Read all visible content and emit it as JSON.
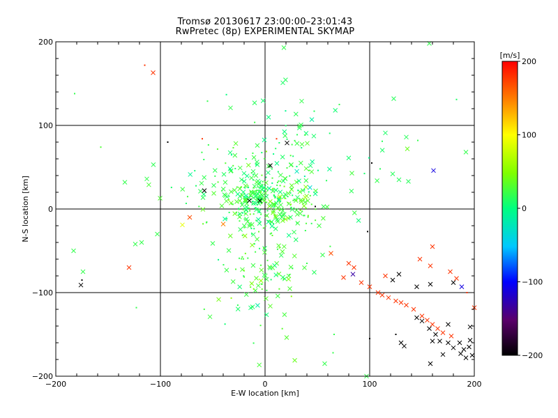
{
  "title_line1": "Tromsø 20130617 23:00:00–23:01:43",
  "title_line2": "RwPretec (8p) EXPERIMENTAL SKYMAP",
  "chart_data": {
    "type": "scatter",
    "title": "Tromsø 20130617 23:00:00–23:01:43 / RwPretec (8p) EXPERIMENTAL SKYMAP",
    "xlabel": "E-W location [km]",
    "ylabel": "N-S location [km]",
    "xlim": [
      -200,
      200
    ],
    "ylim": [
      -200,
      200
    ],
    "xticks": [
      -200,
      -100,
      0,
      100,
      200
    ],
    "yticks": [
      -200,
      -100,
      0,
      100,
      200
    ],
    "grid": true,
    "colorbar": {
      "label": "[m/s]",
      "range": [
        -200,
        200
      ],
      "ticks": [
        200,
        100,
        0,
        -100,
        -200
      ],
      "colors": [
        "#000000",
        "#5a006a",
        "#0000ff",
        "#00c8ff",
        "#00ff80",
        "#80ff00",
        "#ffff00",
        "#ff8000",
        "#ff0000"
      ]
    },
    "markers": [
      "x (large echoes)",
      "dot (small echoes)"
    ],
    "points": [
      {
        "x": -115,
        "y": 172,
        "v": 180,
        "m": "dot"
      },
      {
        "x": -107,
        "y": 163,
        "v": 180,
        "m": "x"
      },
      {
        "x": 18,
        "y": 193,
        "v": 20,
        "m": "x"
      },
      {
        "x": 157,
        "y": 198,
        "v": 20,
        "m": "x"
      },
      {
        "x": 17,
        "y": 151,
        "v": 10,
        "m": "x"
      },
      {
        "x": -182,
        "y": 138,
        "v": 20,
        "m": "dot"
      },
      {
        "x": 123,
        "y": 132,
        "v": 15,
        "m": "x"
      },
      {
        "x": 183,
        "y": 131,
        "v": 10,
        "m": "dot"
      },
      {
        "x": -33,
        "y": 121,
        "v": 20,
        "m": "x"
      },
      {
        "x": -10,
        "y": 127,
        "v": 15,
        "m": "x"
      },
      {
        "x": -55,
        "y": 129,
        "v": 20,
        "m": "dot"
      },
      {
        "x": 47,
        "y": 117,
        "v": 15,
        "m": "dot"
      },
      {
        "x": 71,
        "y": 125,
        "v": 20,
        "m": "dot"
      },
      {
        "x": 35,
        "y": 129,
        "v": 20,
        "m": "x"
      },
      {
        "x": -93,
        "y": 80,
        "v": -200,
        "m": "dot"
      },
      {
        "x": 21,
        "y": 79,
        "v": -200,
        "m": "x"
      },
      {
        "x": -60,
        "y": 84,
        "v": 180,
        "m": "dot"
      },
      {
        "x": 11,
        "y": 84,
        "v": 180,
        "m": "dot"
      },
      {
        "x": 115,
        "y": 91,
        "v": 10,
        "m": "x"
      },
      {
        "x": 135,
        "y": 86,
        "v": 15,
        "m": "x"
      },
      {
        "x": 136,
        "y": 72,
        "v": 40,
        "m": "x"
      },
      {
        "x": 112,
        "y": 81,
        "v": 15,
        "m": "dot"
      },
      {
        "x": 146,
        "y": 82,
        "v": 20,
        "m": "dot"
      },
      {
        "x": 192,
        "y": 68,
        "v": 20,
        "m": "x"
      },
      {
        "x": -157,
        "y": 74,
        "v": 30,
        "m": "dot"
      },
      {
        "x": 161,
        "y": 46,
        "v": -110,
        "m": "x"
      },
      {
        "x": 5,
        "y": 52,
        "v": -200,
        "m": "x"
      },
      {
        "x": 102,
        "y": 55,
        "v": -200,
        "m": "dot"
      },
      {
        "x": 110,
        "y": 48,
        "v": 15,
        "m": "dot"
      },
      {
        "x": 122,
        "y": 42,
        "v": 15,
        "m": "x"
      },
      {
        "x": 128,
        "y": 35,
        "v": 15,
        "m": "x"
      },
      {
        "x": 137,
        "y": 33,
        "v": 15,
        "m": "x"
      },
      {
        "x": -134,
        "y": 32,
        "v": 20,
        "m": "x"
      },
      {
        "x": -113,
        "y": 36,
        "v": 20,
        "m": "x"
      },
      {
        "x": -58,
        "y": 22,
        "v": -200,
        "m": "x"
      },
      {
        "x": -15,
        "y": 10,
        "v": -200,
        "m": "x"
      },
      {
        "x": -5,
        "y": 10,
        "v": -200,
        "m": "x"
      },
      {
        "x": 48,
        "y": 3,
        "v": -200,
        "m": "dot"
      },
      {
        "x": 98,
        "y": -27,
        "v": -200,
        "m": "dot"
      },
      {
        "x": -79,
        "y": -19,
        "v": 90,
        "m": "x"
      },
      {
        "x": -72,
        "y": -10,
        "v": 170,
        "m": "x"
      },
      {
        "x": -40,
        "y": -18,
        "v": 150,
        "m": "x"
      },
      {
        "x": -103,
        "y": -30,
        "v": 20,
        "m": "x"
      },
      {
        "x": -118,
        "y": -40,
        "v": 20,
        "m": "x"
      },
      {
        "x": -124,
        "y": -42,
        "v": 20,
        "m": "x"
      },
      {
        "x": -183,
        "y": -50,
        "v": 20,
        "m": "x"
      },
      {
        "x": -130,
        "y": -70,
        "v": 180,
        "m": "x"
      },
      {
        "x": -174,
        "y": -75,
        "v": 20,
        "m": "x"
      },
      {
        "x": -175,
        "y": -85,
        "v": -200,
        "m": "dot"
      },
      {
        "x": -176,
        "y": -91,
        "v": -200,
        "m": "x"
      },
      {
        "x": -123,
        "y": -118,
        "v": 20,
        "m": "dot"
      },
      {
        "x": 63,
        "y": -53,
        "v": 170,
        "m": "x"
      },
      {
        "x": 80,
        "y": -65,
        "v": 180,
        "m": "x"
      },
      {
        "x": 85,
        "y": -70,
        "v": 180,
        "m": "x"
      },
      {
        "x": 84,
        "y": -78,
        "v": -130,
        "m": "x"
      },
      {
        "x": 75,
        "y": -82,
        "v": 180,
        "m": "x"
      },
      {
        "x": 92,
        "y": -88,
        "v": 180,
        "m": "x"
      },
      {
        "x": 100,
        "y": -93,
        "v": 180,
        "m": "x"
      },
      {
        "x": 108,
        "y": -100,
        "v": 180,
        "m": "x"
      },
      {
        "x": 112,
        "y": -103,
        "v": 180,
        "m": "x"
      },
      {
        "x": 118,
        "y": -106,
        "v": 180,
        "m": "x"
      },
      {
        "x": 125,
        "y": -110,
        "v": 180,
        "m": "x"
      },
      {
        "x": 130,
        "y": -112,
        "v": 180,
        "m": "x"
      },
      {
        "x": 135,
        "y": -115,
        "v": 180,
        "m": "x"
      },
      {
        "x": 142,
        "y": -120,
        "v": 180,
        "m": "x"
      },
      {
        "x": 150,
        "y": -128,
        "v": 180,
        "m": "x"
      },
      {
        "x": 155,
        "y": -133,
        "v": 180,
        "m": "x"
      },
      {
        "x": 160,
        "y": -138,
        "v": 180,
        "m": "x"
      },
      {
        "x": 165,
        "y": -143,
        "v": 180,
        "m": "x"
      },
      {
        "x": 170,
        "y": -148,
        "v": 180,
        "m": "x"
      },
      {
        "x": 178,
        "y": -152,
        "v": 180,
        "m": "x"
      },
      {
        "x": 200,
        "y": -118,
        "v": 180,
        "m": "x"
      },
      {
        "x": 193,
        "y": -100,
        "v": 180,
        "m": "dot"
      },
      {
        "x": 160,
        "y": -45,
        "v": 180,
        "m": "x"
      },
      {
        "x": 148,
        "y": -60,
        "v": 180,
        "m": "x"
      },
      {
        "x": 158,
        "y": -68,
        "v": 180,
        "m": "x"
      },
      {
        "x": 177,
        "y": -75,
        "v": 180,
        "m": "x"
      },
      {
        "x": 183,
        "y": -83,
        "v": 180,
        "m": "x"
      },
      {
        "x": 115,
        "y": -80,
        "v": 180,
        "m": "x"
      },
      {
        "x": 122,
        "y": -85,
        "v": -200,
        "m": "x"
      },
      {
        "x": 128,
        "y": -78,
        "v": -200,
        "m": "x"
      },
      {
        "x": 145,
        "y": -93,
        "v": -200,
        "m": "x"
      },
      {
        "x": 158,
        "y": -90,
        "v": -200,
        "m": "x"
      },
      {
        "x": 180,
        "y": -88,
        "v": -200,
        "m": "x"
      },
      {
        "x": 188,
        "y": -93,
        "v": -110,
        "m": "x"
      },
      {
        "x": 145,
        "y": -130,
        "v": -200,
        "m": "x"
      },
      {
        "x": 150,
        "y": -134,
        "v": -200,
        "m": "x"
      },
      {
        "x": 157,
        "y": -143,
        "v": -200,
        "m": "x"
      },
      {
        "x": 163,
        "y": -150,
        "v": -200,
        "m": "x"
      },
      {
        "x": 167,
        "y": -158,
        "v": -200,
        "m": "x"
      },
      {
        "x": 160,
        "y": -158,
        "v": -200,
        "m": "x"
      },
      {
        "x": 175,
        "y": -160,
        "v": -200,
        "m": "x"
      },
      {
        "x": 180,
        "y": -166,
        "v": -200,
        "m": "x"
      },
      {
        "x": 186,
        "y": -160,
        "v": -200,
        "m": "x"
      },
      {
        "x": 190,
        "y": -168,
        "v": -200,
        "m": "x"
      },
      {
        "x": 195,
        "y": -165,
        "v": -200,
        "m": "x"
      },
      {
        "x": 198,
        "y": -175,
        "v": -200,
        "m": "x"
      },
      {
        "x": 192,
        "y": -178,
        "v": -200,
        "m": "x"
      },
      {
        "x": 187,
        "y": -173,
        "v": -200,
        "m": "x"
      },
      {
        "x": 196,
        "y": -157,
        "v": -200,
        "m": "x"
      },
      {
        "x": 196,
        "y": -141,
        "v": -200,
        "m": "x"
      },
      {
        "x": 175,
        "y": -138,
        "v": -200,
        "m": "x"
      },
      {
        "x": 170,
        "y": -174,
        "v": -200,
        "m": "x"
      },
      {
        "x": 158,
        "y": -185,
        "v": -200,
        "m": "x"
      },
      {
        "x": 130,
        "y": -160,
        "v": -200,
        "m": "x"
      },
      {
        "x": 133,
        "y": -164,
        "v": -200,
        "m": "x"
      },
      {
        "x": 125,
        "y": -150,
        "v": -200,
        "m": "dot"
      },
      {
        "x": 100,
        "y": -155,
        "v": -200,
        "m": "dot"
      },
      {
        "x": 97,
        "y": -200,
        "v": 20,
        "m": "x"
      },
      {
        "x": 57,
        "y": -185,
        "v": 20,
        "m": "x"
      },
      {
        "x": 66,
        "y": -150,
        "v": 20,
        "m": "dot"
      },
      {
        "x": 65,
        "y": -172,
        "v": 20,
        "m": "dot"
      },
      {
        "x": 55,
        "y": -55,
        "v": 20,
        "m": "x"
      },
      {
        "x": 40,
        "y": -65,
        "v": 20,
        "m": "dot"
      }
    ],
    "dense_cloud": [
      {
        "cx": -5,
        "cy": 10,
        "sx": 16,
        "sy": 18,
        "n": 160,
        "v": 20
      },
      {
        "cx": 20,
        "cy": 0,
        "sx": 20,
        "sy": 12,
        "n": 70,
        "v": 30
      },
      {
        "cx": 5,
        "cy": 40,
        "sx": 25,
        "sy": 25,
        "n": 70,
        "v": 15
      },
      {
        "cx": -5,
        "cy": -70,
        "sx": 25,
        "sy": 40,
        "n": 110,
        "v": 25
      },
      {
        "cx": 30,
        "cy": 60,
        "sx": 40,
        "sy": 40,
        "n": 60,
        "v": 10
      },
      {
        "cx": -40,
        "cy": 20,
        "sx": 30,
        "sy": 25,
        "n": 50,
        "v": 20
      }
    ]
  }
}
